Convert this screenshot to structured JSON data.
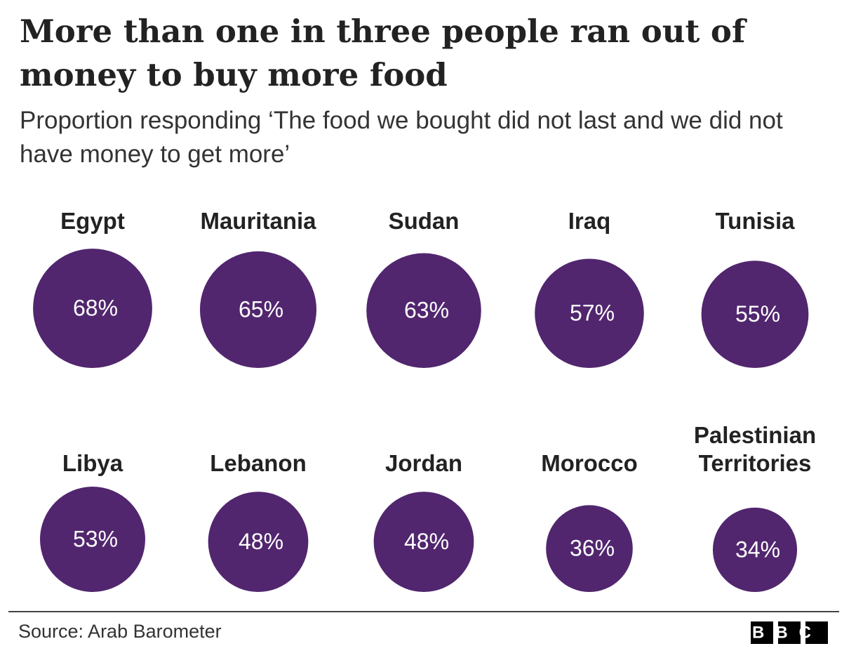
{
  "chart_data": {
    "type": "bubble",
    "title": "More than one in three people ran out of money to buy more food",
    "subtitle": "Proportion responding ‘The food we bought did not last and we did not have money to get more’",
    "categories": [
      "Egypt",
      "Mauritania",
      "Sudan",
      "Iraq",
      "Tunisia",
      "Libya",
      "Lebanon",
      "Jordan",
      "Morocco",
      "Palestinian Territories"
    ],
    "values": [
      68,
      65,
      63,
      57,
      55,
      53,
      48,
      48,
      36,
      34
    ],
    "value_labels": [
      "68%",
      "65%",
      "63%",
      "57%",
      "55%",
      "53%",
      "48%",
      "48%",
      "36%",
      "34%"
    ],
    "color": "#51266e",
    "source": "Source: Arab Barometer",
    "logo": "BBC"
  }
}
